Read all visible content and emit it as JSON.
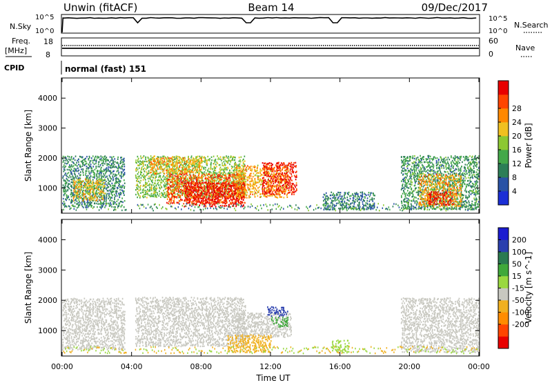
{
  "header": {
    "station": "Unwin (fitACF)",
    "beam": "Beam 14",
    "date": "09/Dec/2017"
  },
  "top_panel": {
    "nsky_label": "N.Sky",
    "nsky_ticks": [
      "10^5",
      "10^0"
    ],
    "nsearch_label": "N.Search",
    "freq_label": "Freq.",
    "freq_unit": "[MHz]",
    "freq_ticks": [
      "18",
      "8"
    ],
    "nave_label": "Nave",
    "nave_ticks": [
      "60",
      "0"
    ],
    "cpid_label": "CPID",
    "cpid_text": "normal (fast) 151"
  },
  "colors": {
    "power": [
      "#1b2fd6",
      "#2952a5",
      "#2c7e57",
      "#44a84a",
      "#8cc832",
      "#f0c020",
      "#ff8800",
      "#ff4500",
      "#e80000"
    ],
    "velocity": [
      "#e80000",
      "#ff4500",
      "#ff8c00",
      "#f0b020",
      "#c8c8c0",
      "#9ad840",
      "#3fa83a",
      "#2a7a50",
      "#2a3fae",
      "#1b1bd0"
    ]
  },
  "chart_data": [
    {
      "type": "heatmap",
      "name": "Power",
      "ylabel": "Slant Range [km]",
      "yticks": [
        "1000",
        "2000",
        "3000",
        "4000"
      ],
      "ylim": [
        180,
        4650
      ],
      "xlim": [
        "00:00",
        "00:00"
      ],
      "colorbar_label": "Power [dB]",
      "colorbar_ticks": [
        "4",
        "8",
        "12",
        "16",
        "20",
        "24",
        "28"
      ],
      "colorbar_range": [
        0,
        30
      ],
      "regions": [
        {
          "t": [
            0.0,
            3.6
          ],
          "r": [
            380,
            2100
          ],
          "value": 9
        },
        {
          "t": [
            0.6,
            2.4
          ],
          "r": [
            600,
            1300
          ],
          "value": 18
        },
        {
          "t": [
            4.2,
            10.5
          ],
          "r": [
            700,
            2100
          ],
          "value": 14
        },
        {
          "t": [
            5.0,
            8.0
          ],
          "r": [
            1500,
            2050
          ],
          "value": 20
        },
        {
          "t": [
            6.0,
            10.5
          ],
          "r": [
            500,
            1500
          ],
          "value": 24
        },
        {
          "t": [
            7.0,
            10.5
          ],
          "r": [
            400,
            1200
          ],
          "value": 29
        },
        {
          "t": [
            10.0,
            13.0
          ],
          "r": [
            700,
            1800
          ],
          "value": 20
        },
        {
          "t": [
            11.5,
            13.5
          ],
          "r": [
            800,
            1900
          ],
          "value": 27
        },
        {
          "t": [
            15.0,
            18.0
          ],
          "r": [
            300,
            900
          ],
          "value": 8
        },
        {
          "t": [
            19.5,
            24.0
          ],
          "r": [
            300,
            2100
          ],
          "value": 10
        },
        {
          "t": [
            20.5,
            23.0
          ],
          "r": [
            400,
            1500
          ],
          "value": 20
        },
        {
          "t": [
            21.0,
            22.5
          ],
          "r": [
            450,
            900
          ],
          "value": 27
        }
      ]
    },
    {
      "type": "heatmap",
      "name": "Velocity",
      "ylabel": "Slant Range [km]",
      "yticks": [
        "1000",
        "2000",
        "3000",
        "4000"
      ],
      "ylim": [
        180,
        4650
      ],
      "xlabel": "Time UT",
      "xticks": [
        "00:00",
        "04:00",
        "08:00",
        "12:00",
        "16:00",
        "20:00",
        "00:00"
      ],
      "xlim": [
        0,
        24
      ],
      "colorbar_label": "Velocity [m s^-1]",
      "colorbar_ticks": [
        "200",
        "100",
        "50",
        "15",
        "-15",
        "-50",
        "-100",
        "-200"
      ],
      "colorbar_range": [
        -250,
        250
      ],
      "regions": [
        {
          "t": [
            0.0,
            3.6
          ],
          "r": [
            380,
            2100
          ],
          "value": 0
        },
        {
          "t": [
            4.2,
            10.5
          ],
          "r": [
            500,
            2100
          ],
          "value": 0
        },
        {
          "t": [
            10.0,
            13.2
          ],
          "r": [
            800,
            1600
          ],
          "value": 0
        },
        {
          "t": [
            11.8,
            13.0
          ],
          "r": [
            1500,
            1800
          ],
          "value": 180
        },
        {
          "t": [
            12.0,
            13.0
          ],
          "r": [
            1150,
            1450
          ],
          "value": 60
        },
        {
          "t": [
            9.5,
            12.0
          ],
          "r": [
            300,
            900
          ],
          "value": -40
        },
        {
          "t": [
            15.5,
            16.5
          ],
          "r": [
            300,
            700
          ],
          "value": 30
        },
        {
          "t": [
            19.5,
            24.0
          ],
          "r": [
            300,
            2100
          ],
          "value": 0
        }
      ]
    }
  ]
}
